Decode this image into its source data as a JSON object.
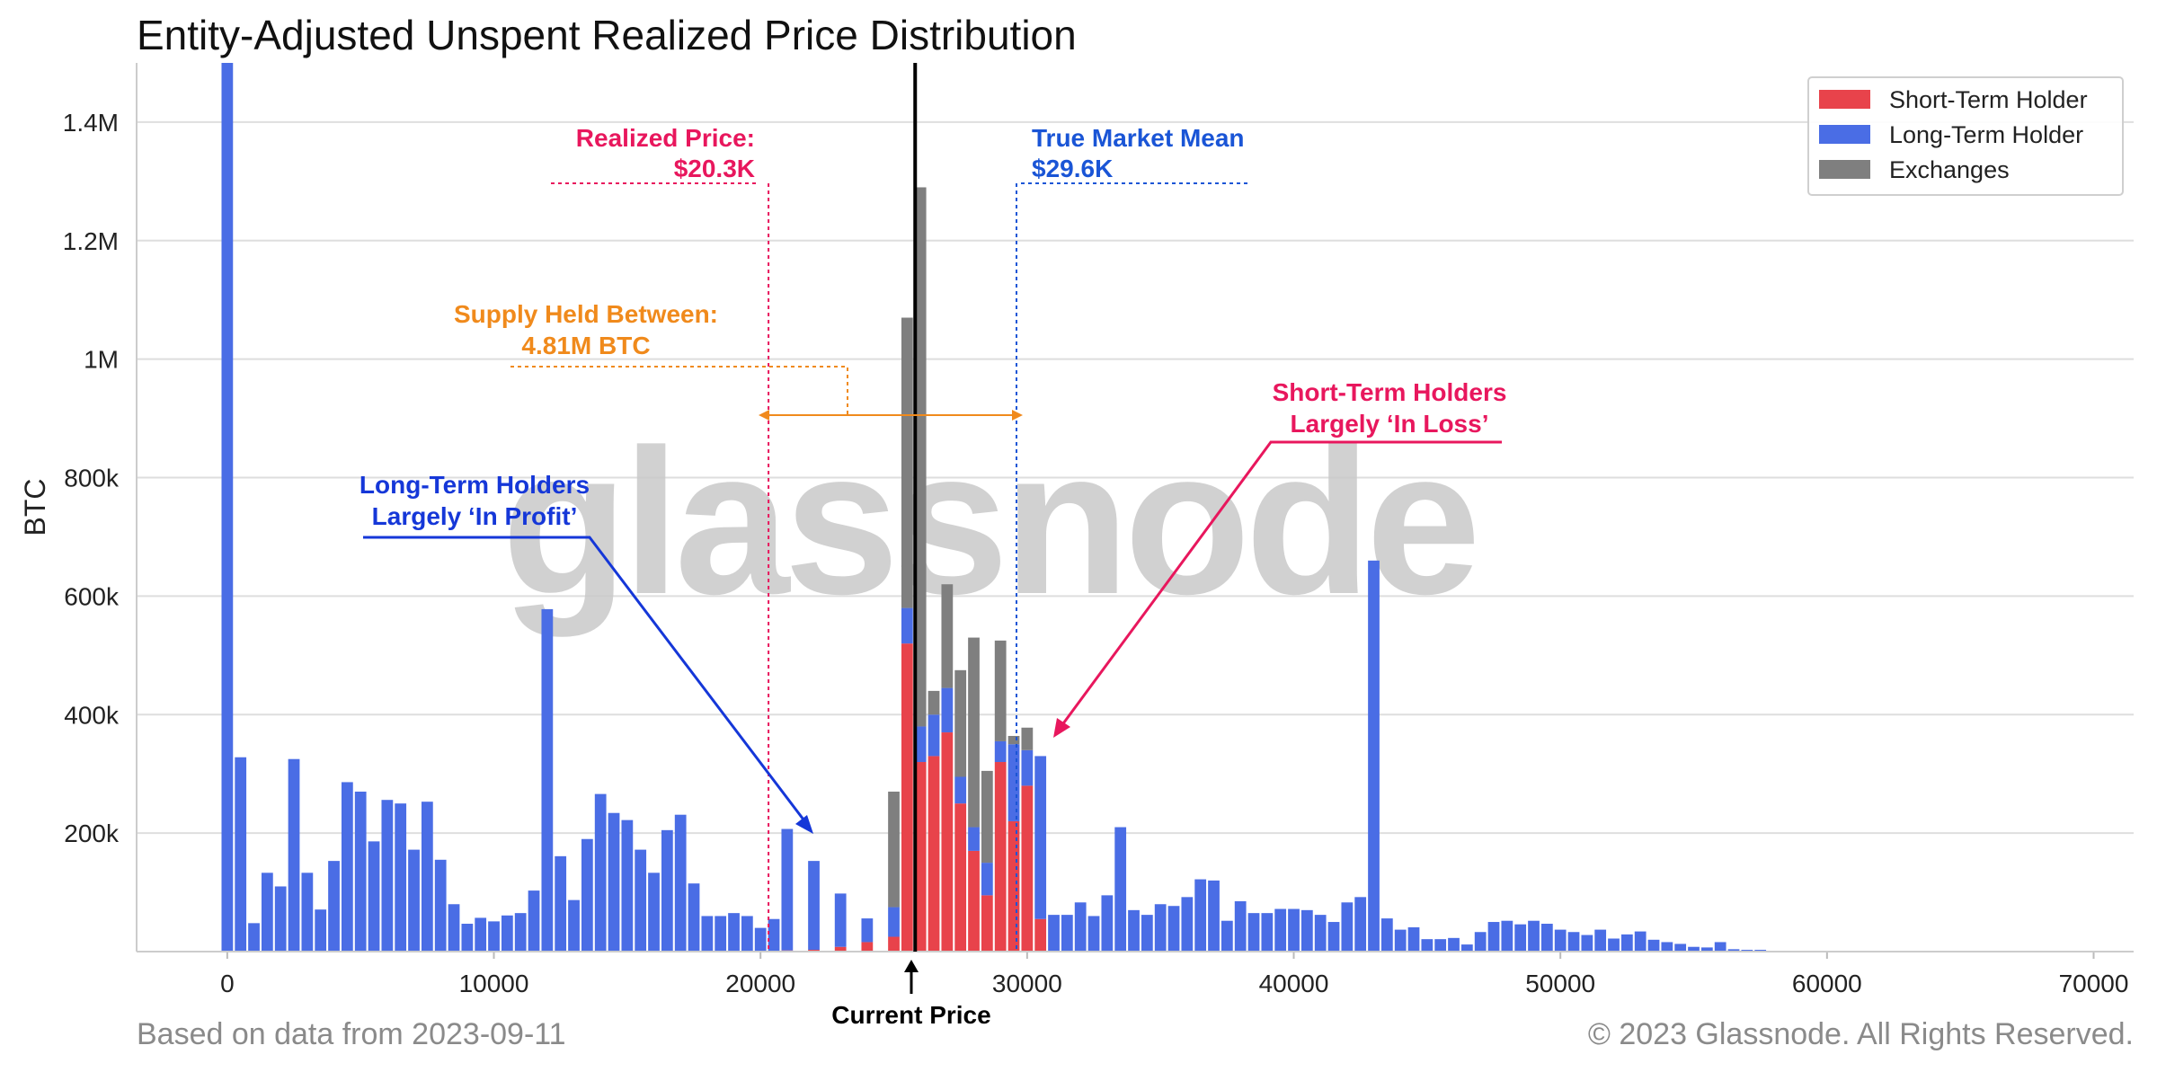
{
  "title": "Entity-Adjusted Unspent Realized Price Distribution",
  "footer_left": "Based on data from 2023-09-11",
  "footer_right": "© 2023 Glassnode. All Rights Reserved.",
  "watermark": "glassnode",
  "colors": {
    "sth": "#e8434b",
    "lth": "#4a6de5",
    "exchanges": "#7f7f7f",
    "realized": "#e8175d",
    "mean": "#1a55d6",
    "supply": "#f08a1c",
    "lth_annot": "#1537d8",
    "sth_annot": "#e8175d"
  },
  "annotations": {
    "realized_label": "Realized Price:",
    "realized_value": "$20.3K",
    "mean_label": "True Market Mean",
    "mean_value": "$29.6K",
    "supply_label": "Supply Held Between:",
    "supply_value": "4.81M BTC",
    "lth_line1": "Long-Term Holders",
    "lth_line2": "Largely ‘In Profit’",
    "sth_line1": "Short-Term Holders",
    "sth_line2": "Largely ‘In Loss’",
    "current_price": "Current Price"
  },
  "chart_data": {
    "type": "bar",
    "stacked": true,
    "title": "Entity-Adjusted Unspent Realized Price Distribution",
    "xlabel": "",
    "ylabel": "BTC",
    "xlim": [
      -3400,
      71500
    ],
    "ylim": [
      0,
      1500000
    ],
    "bin_width": 500,
    "x_ticks": [
      0,
      10000,
      20000,
      30000,
      40000,
      50000,
      60000,
      70000
    ],
    "x_tick_labels": [
      "0",
      "10000",
      "20000",
      "30000",
      "40000",
      "50000",
      "60000",
      "70000"
    ],
    "y_ticks": [
      200000,
      400000,
      600000,
      800000,
      1000000,
      1200000,
      1400000
    ],
    "y_tick_labels": [
      "200k",
      "400k",
      "600k",
      "800k",
      "1M",
      "1.2M",
      "1.4M"
    ],
    "grid": true,
    "legend_position": "top-right",
    "series": [
      {
        "name": "Short-Term Holder",
        "color": "#e8434b",
        "points": [
          [
            21000,
            2000
          ],
          [
            22000,
            3000
          ],
          [
            23000,
            8000
          ],
          [
            24000,
            16000
          ],
          [
            25000,
            25000
          ],
          [
            25500,
            520000
          ],
          [
            26000,
            320000
          ],
          [
            26500,
            330000
          ],
          [
            27000,
            370000
          ],
          [
            27500,
            250000
          ],
          [
            28000,
            170000
          ],
          [
            28500,
            95000
          ],
          [
            29000,
            320000
          ],
          [
            29500,
            220000
          ],
          [
            30000,
            280000
          ],
          [
            30500,
            55000
          ]
        ]
      },
      {
        "name": "Long-Term Holder",
        "color": "#4a6de5",
        "points": [
          [
            0,
            1500000
          ],
          [
            500,
            328000
          ],
          [
            1000,
            48000
          ],
          [
            1500,
            133000
          ],
          [
            2000,
            110000
          ],
          [
            2500,
            325000
          ],
          [
            3000,
            133000
          ],
          [
            3500,
            71000
          ],
          [
            4000,
            153000
          ],
          [
            4500,
            286000
          ],
          [
            5000,
            270000
          ],
          [
            5500,
            186000
          ],
          [
            6000,
            256000
          ],
          [
            6500,
            250000
          ],
          [
            7000,
            172000
          ],
          [
            7500,
            253000
          ],
          [
            8000,
            155000
          ],
          [
            8500,
            80000
          ],
          [
            9000,
            47000
          ],
          [
            9500,
            57000
          ],
          [
            10000,
            51000
          ],
          [
            10500,
            61000
          ],
          [
            11000,
            65000
          ],
          [
            11500,
            103000
          ],
          [
            12000,
            578000
          ],
          [
            12500,
            161000
          ],
          [
            13000,
            87000
          ],
          [
            13500,
            190000
          ],
          [
            14000,
            266000
          ],
          [
            14500,
            234000
          ],
          [
            15000,
            222000
          ],
          [
            15500,
            172000
          ],
          [
            16000,
            133000
          ],
          [
            16500,
            205000
          ],
          [
            17000,
            231000
          ],
          [
            17500,
            115000
          ],
          [
            18000,
            60000
          ],
          [
            18500,
            60000
          ],
          [
            19000,
            65000
          ],
          [
            19500,
            60000
          ],
          [
            20000,
            40000
          ],
          [
            20500,
            55000
          ],
          [
            21000,
            205000
          ],
          [
            22000,
            150000
          ],
          [
            23000,
            90000
          ],
          [
            24000,
            40000
          ],
          [
            25000,
            50000
          ],
          [
            25500,
            60000
          ],
          [
            26000,
            60000
          ],
          [
            26500,
            70000
          ],
          [
            27000,
            75000
          ],
          [
            27500,
            45000
          ],
          [
            28000,
            40000
          ],
          [
            28500,
            55000
          ],
          [
            29000,
            35000
          ],
          [
            29500,
            130000
          ],
          [
            30000,
            60000
          ],
          [
            30500,
            275000
          ],
          [
            31000,
            62000
          ],
          [
            31500,
            62000
          ],
          [
            32000,
            83000
          ],
          [
            32500,
            60000
          ],
          [
            33000,
            95000
          ],
          [
            33500,
            210000
          ],
          [
            34000,
            70000
          ],
          [
            34500,
            62000
          ],
          [
            35000,
            80000
          ],
          [
            35500,
            77000
          ],
          [
            36000,
            92000
          ],
          [
            36500,
            122000
          ],
          [
            37000,
            120000
          ],
          [
            37500,
            52000
          ],
          [
            38000,
            85000
          ],
          [
            38500,
            65000
          ],
          [
            39000,
            65000
          ],
          [
            39500,
            72000
          ],
          [
            40000,
            72000
          ],
          [
            40500,
            70000
          ],
          [
            41000,
            62000
          ],
          [
            41500,
            50000
          ],
          [
            42000,
            83000
          ],
          [
            42500,
            92000
          ],
          [
            43000,
            660000
          ],
          [
            43500,
            56000
          ],
          [
            44000,
            37000
          ],
          [
            44500,
            41000
          ],
          [
            45000,
            21000
          ],
          [
            45500,
            21000
          ],
          [
            46000,
            23000
          ],
          [
            46500,
            12000
          ],
          [
            47000,
            33000
          ],
          [
            47500,
            50000
          ],
          [
            48000,
            52000
          ],
          [
            48500,
            46000
          ],
          [
            49000,
            52000
          ],
          [
            49500,
            47000
          ],
          [
            50000,
            37000
          ],
          [
            50500,
            33000
          ],
          [
            51000,
            28000
          ],
          [
            51500,
            37000
          ],
          [
            52000,
            22000
          ],
          [
            52500,
            29000
          ],
          [
            53000,
            34000
          ],
          [
            53500,
            20000
          ],
          [
            54000,
            16000
          ],
          [
            54500,
            13000
          ],
          [
            55000,
            8000
          ],
          [
            55500,
            7000
          ],
          [
            56000,
            16000
          ],
          [
            56500,
            4000
          ],
          [
            57000,
            3000
          ],
          [
            57500,
            3000
          ]
        ]
      },
      {
        "name": "Exchanges",
        "color": "#7f7f7f",
        "points": [
          [
            25000,
            195000
          ],
          [
            25500,
            490000
          ],
          [
            26000,
            910000
          ],
          [
            26500,
            40000
          ],
          [
            27000,
            175000
          ],
          [
            27500,
            180000
          ],
          [
            28000,
            320000
          ],
          [
            28500,
            155000
          ],
          [
            29000,
            170000
          ],
          [
            29500,
            14000
          ],
          [
            30000,
            38000
          ]
        ]
      }
    ],
    "reference_lines": [
      {
        "name": "Current Price",
        "x": 25800
      },
      {
        "name": "Realized Price",
        "x": 20300
      },
      {
        "name": "True Market Mean",
        "x": 29600
      }
    ],
    "supply_between_btc": 4810000
  }
}
